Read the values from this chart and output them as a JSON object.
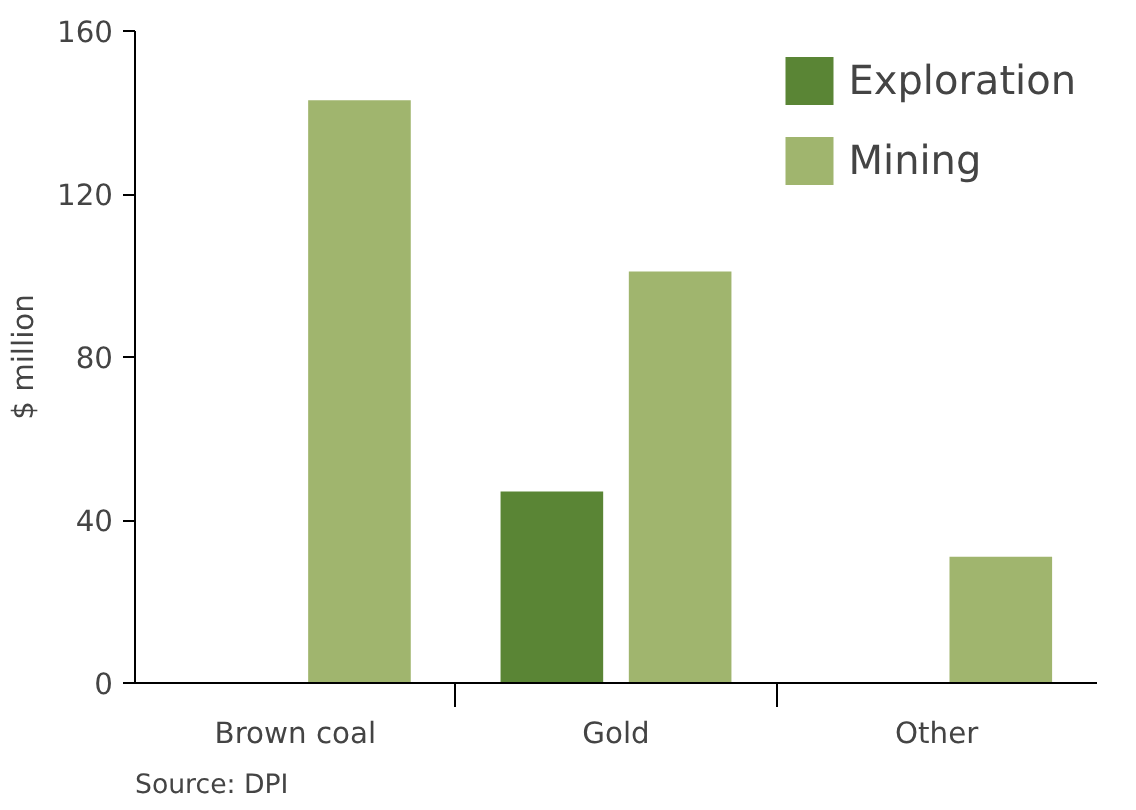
{
  "chart_data": {
    "type": "bar",
    "categories": [
      "Brown coal",
      "Gold",
      "Other"
    ],
    "ylabel": "$ million",
    "ylim": [
      0,
      160
    ],
    "yticks": [
      0,
      40,
      80,
      120,
      160
    ],
    "series": [
      {
        "name": "Exploration",
        "color": "#5a8535",
        "values": [
          null,
          47,
          null
        ]
      },
      {
        "name": "Mining",
        "color": "#a0b56e",
        "values": [
          143,
          101,
          31
        ]
      }
    ],
    "legend": "top right",
    "grid": false,
    "annotations": [
      "Source: DPI"
    ]
  }
}
